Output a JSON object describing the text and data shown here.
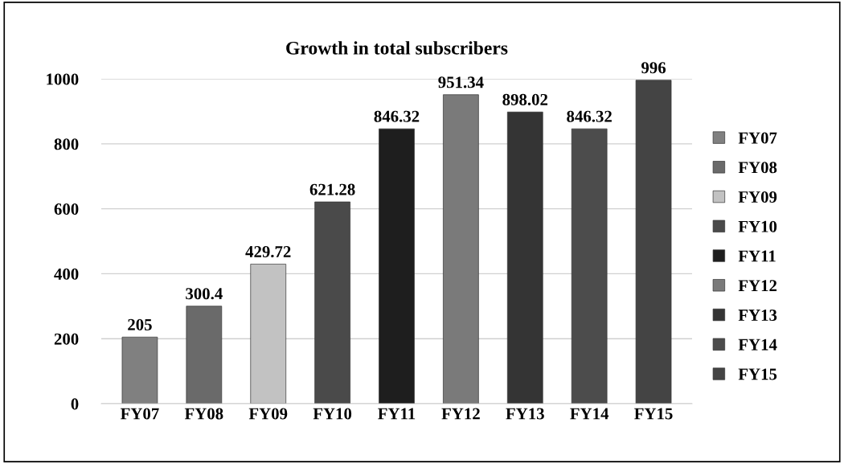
{
  "chart_data": {
    "type": "bar",
    "title": "Growth in total subscribers",
    "categories": [
      "FY07",
      "FY08",
      "FY09",
      "FY10",
      "FY11",
      "FY12",
      "FY13",
      "FY14",
      "FY15"
    ],
    "series": [
      {
        "name": "FY07",
        "color": "#808080",
        "values": [
          205,
          null,
          null,
          null,
          null,
          null,
          null,
          null,
          null
        ]
      },
      {
        "name": "FY08",
        "color": "#6a6a6a",
        "values": [
          null,
          300.4,
          null,
          null,
          null,
          null,
          null,
          null,
          null
        ]
      },
      {
        "name": "FY09",
        "color": "#c2c2c2",
        "values": [
          null,
          null,
          429.72,
          null,
          null,
          null,
          null,
          null,
          null
        ]
      },
      {
        "name": "FY10",
        "color": "#4a4a4a",
        "values": [
          null,
          null,
          null,
          621.28,
          null,
          null,
          null,
          null,
          null
        ]
      },
      {
        "name": "FY11",
        "color": "#1e1e1e",
        "values": [
          null,
          null,
          null,
          null,
          846.32,
          null,
          null,
          null,
          null
        ]
      },
      {
        "name": "FY12",
        "color": "#7a7a7a",
        "values": [
          null,
          null,
          null,
          null,
          null,
          951.34,
          null,
          null,
          null
        ]
      },
      {
        "name": "FY13",
        "color": "#343434",
        "values": [
          null,
          null,
          null,
          null,
          null,
          null,
          898.02,
          null,
          null
        ]
      },
      {
        "name": "FY14",
        "color": "#4c4c4c",
        "values": [
          null,
          null,
          null,
          null,
          null,
          null,
          null,
          846.32,
          null
        ]
      },
      {
        "name": "FY15",
        "color": "#444444",
        "values": [
          null,
          null,
          null,
          null,
          null,
          null,
          null,
          null,
          996
        ]
      }
    ],
    "ylim": [
      0,
      1000
    ],
    "yticks": [
      0,
      200,
      400,
      600,
      800,
      1000
    ],
    "grid": "y",
    "legend": "right",
    "data_labels": true
  }
}
